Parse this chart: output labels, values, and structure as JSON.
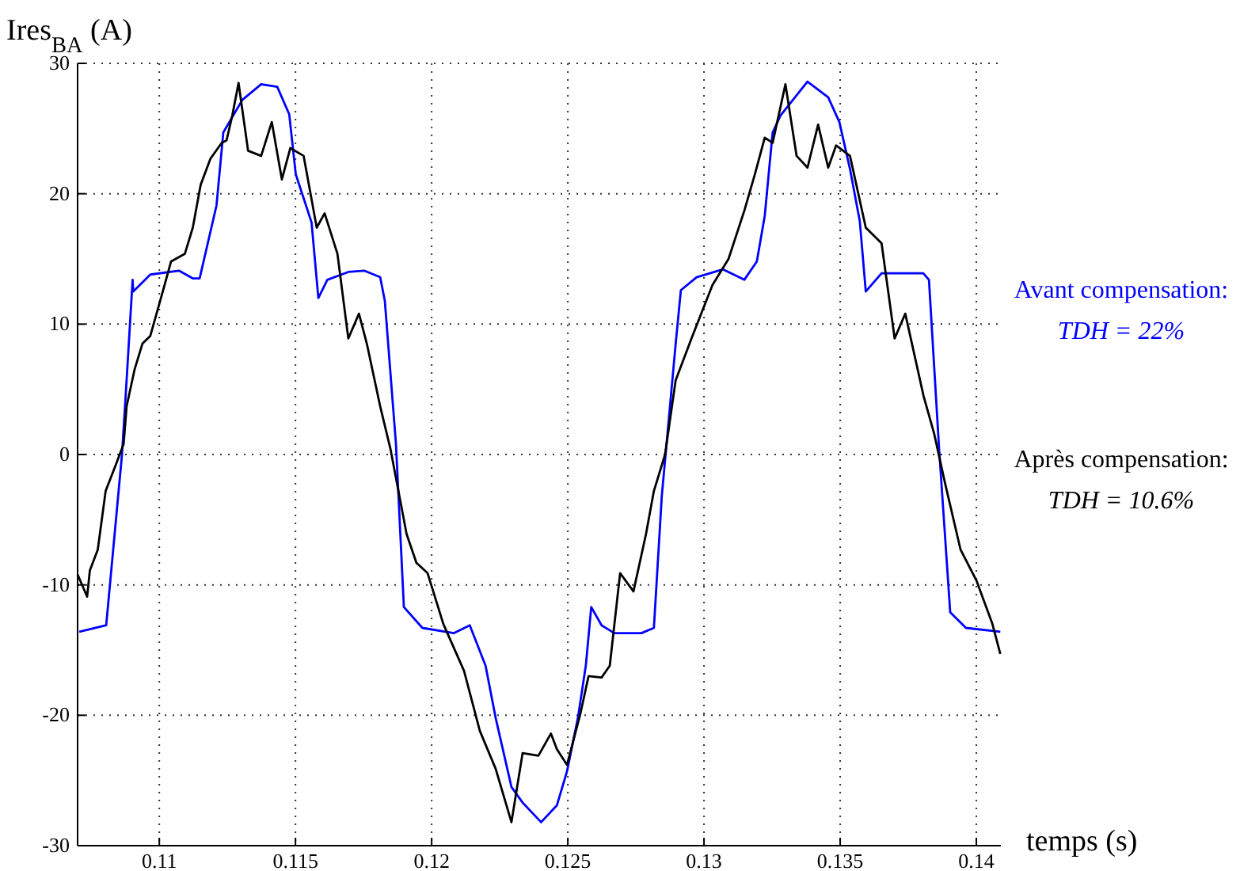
{
  "chart_data": {
    "type": "line",
    "xlabel": "temps (s)",
    "ylabel": "Ires$_{BA}$ (A)",
    "xlim": [
      0.107,
      0.1409
    ],
    "ylim": [
      -30,
      30
    ],
    "xticks": [
      0.11,
      0.115,
      0.12,
      0.125,
      0.13,
      0.135,
      0.14
    ],
    "yticks": [
      -30,
      -20,
      -10,
      0,
      10,
      20,
      30
    ],
    "grid": true,
    "line_style": "solid",
    "marker": "none",
    "annotations": [
      "Avant compensation:\nTDH = 22%",
      "Après compensation:\nTDH = 10.6%"
    ],
    "series": [
      {
        "color": "#0000ff",
        "x": [
          0.10706,
          0.10805,
          0.10863,
          0.1088,
          0.10902,
          0.10904,
          0.10967,
          0.11072,
          0.11124,
          0.11148,
          0.1121,
          0.11235,
          0.11305,
          0.11374,
          0.11433,
          0.11477,
          0.11501,
          0.11559,
          0.11584,
          0.11617,
          0.11694,
          0.11752,
          0.11811,
          0.11828,
          0.11869,
          0.11898,
          0.11966,
          0.12082,
          0.1214,
          0.12198,
          0.12235,
          0.12293,
          0.12334,
          0.12402,
          0.1246,
          0.12497,
          0.12537,
          0.12566,
          0.12586,
          0.12624,
          0.12671,
          0.1277,
          0.12816,
          0.12845,
          0.12896,
          0.12915,
          0.12973,
          0.1307,
          0.13148,
          0.13194,
          0.13223,
          0.13252,
          0.13281,
          0.1338,
          0.13456,
          0.13497,
          0.13536,
          0.13572,
          0.13594,
          0.13652,
          0.13805,
          0.13826,
          0.13863,
          0.13904,
          0.13962,
          0.14088
        ],
        "values": [
          -13.6,
          -13.1,
          0,
          5.7,
          13.4,
          12.5,
          13.8,
          14.1,
          13.5,
          13.5,
          19.1,
          24.7,
          27.2,
          28.4,
          28.2,
          26.1,
          21.5,
          17.8,
          12.0,
          13.4,
          14.0,
          14.1,
          13.6,
          11.8,
          0.8,
          -11.7,
          -13.3,
          -13.7,
          -13.1,
          -16.2,
          -20.2,
          -25.5,
          -26.7,
          -28.2,
          -26.9,
          -24.3,
          -20.2,
          -16.2,
          -11.7,
          -13.1,
          -13.7,
          -13.7,
          -13.3,
          -3.2,
          8.5,
          12.6,
          13.6,
          14.2,
          13.4,
          14.8,
          18.3,
          24.7,
          26,
          28.6,
          27.4,
          25.5,
          21.9,
          17.9,
          12.5,
          13.9,
          13.9,
          13.4,
          0.5,
          -12.1,
          -13.3,
          -13.6
        ]
      },
      {
        "color": "#000000",
        "x": [
          0.107,
          0.10735,
          0.10745,
          0.10774,
          0.10803,
          0.1084,
          0.10869,
          0.1088,
          0.10909,
          0.10938,
          0.10967,
          0.11014,
          0.11043,
          0.11094,
          0.11123,
          0.11152,
          0.11188,
          0.11229,
          0.11247,
          0.11268,
          0.11291,
          0.11326,
          0.11374,
          0.11413,
          0.1145,
          0.11481,
          0.1153,
          0.11578,
          0.11607,
          0.11654,
          0.11694,
          0.11733,
          0.11762,
          0.11811,
          0.11849,
          0.11908,
          0.11944,
          0.11985,
          0.12043,
          0.12119,
          0.12177,
          0.12235,
          0.12293,
          0.12334,
          0.12392,
          0.12438,
          0.1246,
          0.12497,
          0.12547,
          0.12576,
          0.12624,
          0.12654,
          0.12692,
          0.12741,
          0.12787,
          0.12816,
          0.12857,
          0.12896,
          0.12954,
          0.13031,
          0.1309,
          0.13148,
          0.13187,
          0.13223,
          0.13252,
          0.13299,
          0.1334,
          0.1338,
          0.13419,
          0.13456,
          0.13485,
          0.13536,
          0.13594,
          0.13652,
          0.137,
          0.13739,
          0.13806,
          0.13845,
          0.13884,
          0.13942,
          0.14001,
          0.14059,
          0.14088
        ],
        "values": [
          -9.2,
          -10.9,
          -8.9,
          -7.3,
          -2.8,
          -0.8,
          0.8,
          3.7,
          6.5,
          8.5,
          9.1,
          12.6,
          14.8,
          15.4,
          17.4,
          20.7,
          22.7,
          23.9,
          24.1,
          26,
          28.5,
          23.3,
          22.9,
          25.5,
          21.1,
          23.5,
          22.9,
          17.4,
          18.5,
          15.4,
          8.9,
          10.8,
          8.5,
          3.7,
          0.4,
          -6.1,
          -8.3,
          -9.1,
          -13,
          -16.6,
          -21.2,
          -24.1,
          -28.2,
          -22.9,
          -23.1,
          -21.4,
          -22.6,
          -23.8,
          -19.8,
          -17,
          -17.1,
          -16.2,
          -9.1,
          -10.5,
          -6.1,
          -2.8,
          0,
          5.7,
          8.9,
          13,
          15,
          18.7,
          21.5,
          24.3,
          23.9,
          28.4,
          22.9,
          22,
          25.3,
          22,
          23.7,
          22.9,
          17.4,
          16.2,
          8.9,
          10.8,
          4.5,
          1.6,
          -2.1,
          -7.3,
          -9.7,
          -13,
          -15.3
        ]
      }
    ]
  }
}
